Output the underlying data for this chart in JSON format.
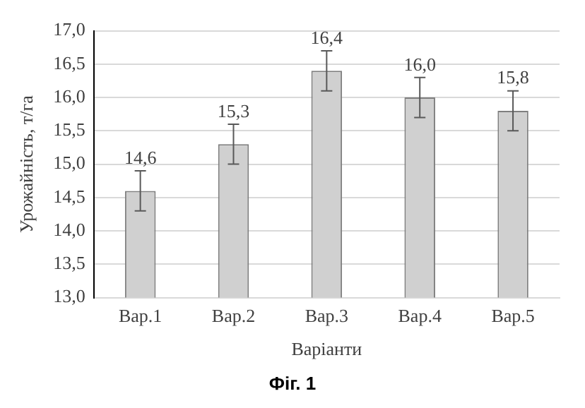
{
  "chart_data": {
    "type": "bar",
    "xlabel": "Варіанти",
    "ylabel": "Урожайність, т/га",
    "categories": [
      "Вар.1",
      "Вар.2",
      "Вар.3",
      "Вар.4",
      "Вар.5"
    ],
    "values": [
      14.6,
      15.3,
      16.4,
      16.0,
      15.8
    ],
    "color": "#d0d0d0",
    "errors": [
      0.3,
      0.3,
      0.3,
      0.3,
      0.3
    ],
    "value_labels": [
      "14,6",
      "15,3",
      "16,4",
      "16,0",
      "15,8"
    ],
    "ylim": [
      13,
      17
    ],
    "yticks": [
      {
        "value": 13,
        "label": "13,0"
      },
      {
        "value": 13.5,
        "label": "13,5"
      },
      {
        "value": 14,
        "label": "14,0"
      },
      {
        "value": 14.5,
        "label": "14,5"
      },
      {
        "value": 15,
        "label": "15,0"
      },
      {
        "value": 15.5,
        "label": "15,5"
      },
      {
        "value": 16,
        "label": "16,0"
      },
      {
        "value": 16.5,
        "label": "16,5"
      },
      {
        "value": 17,
        "label": "17,0"
      }
    ],
    "grid": "y",
    "legend": false,
    "annotations": [
      "Фіг. 1"
    ]
  }
}
